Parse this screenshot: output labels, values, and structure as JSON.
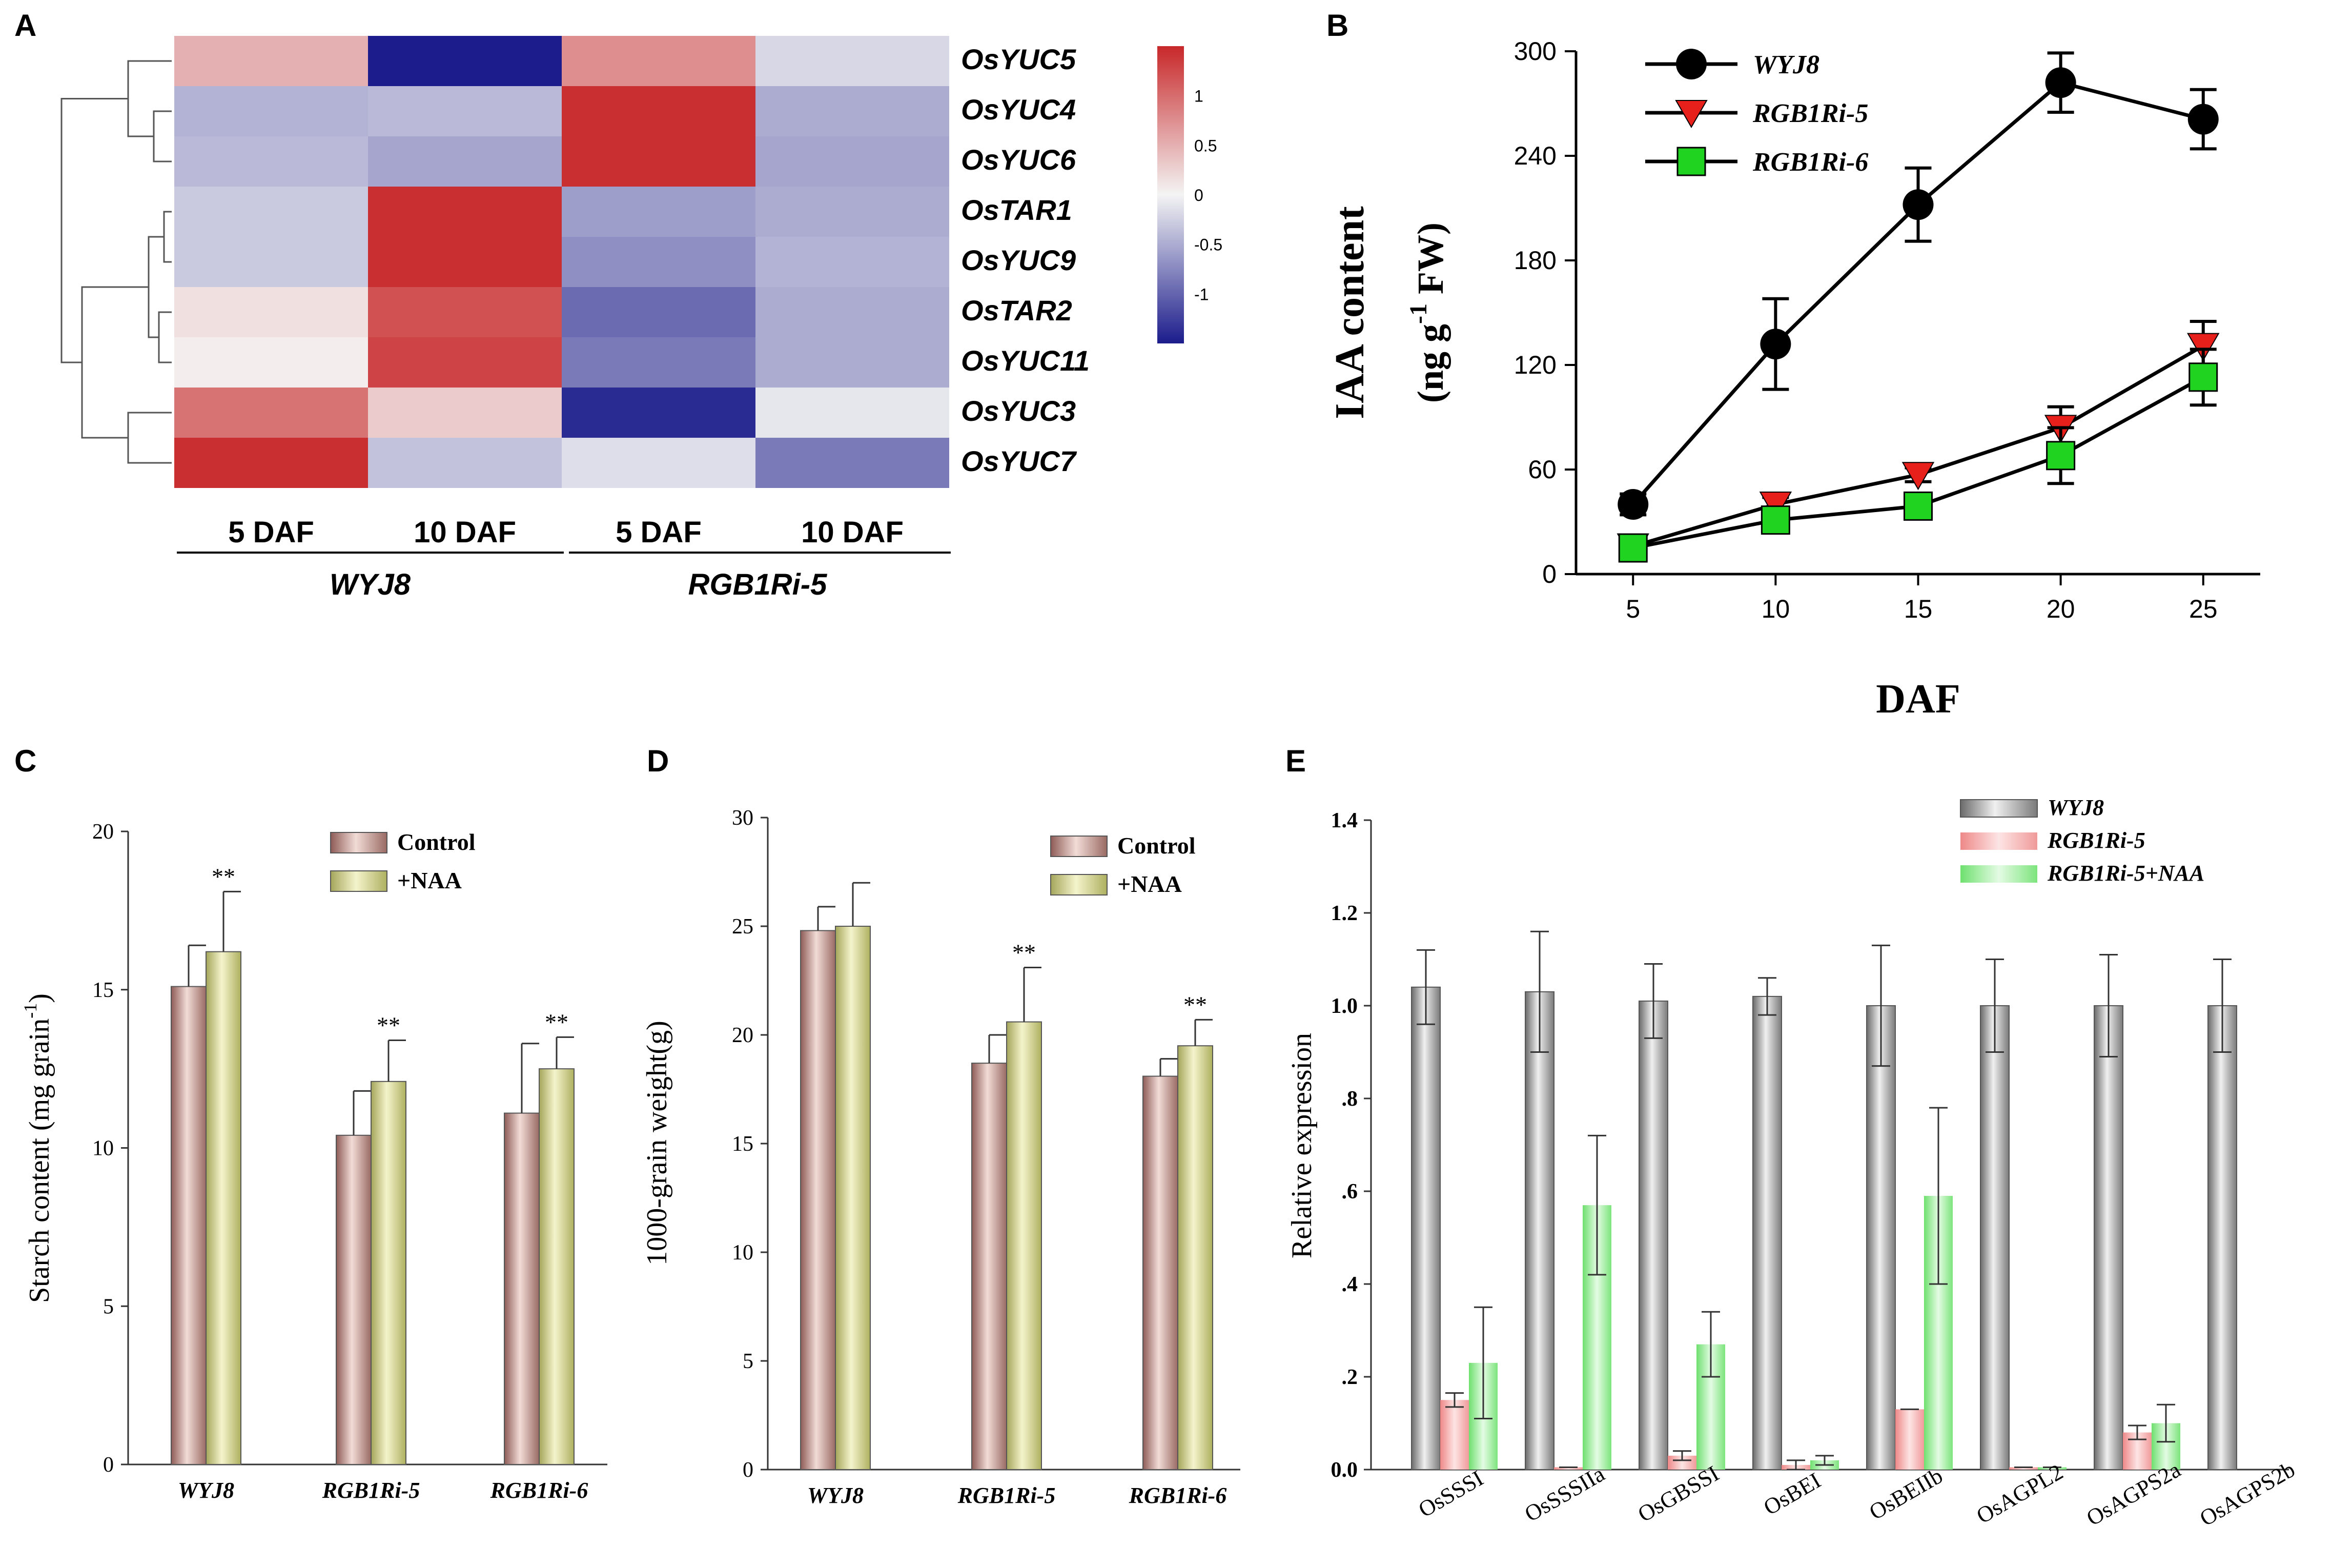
{
  "panel_labels": {
    "A": "A",
    "B": "B",
    "C": "C",
    "D": "D",
    "E": "E"
  },
  "chart_data": [
    {
      "panel": "A",
      "type": "heatmap",
      "columns": [
        "5 DAF",
        "10 DAF",
        "5 DAF",
        "10 DAF"
      ],
      "column_groups": [
        "WYJ8",
        "RGB1Ri-5"
      ],
      "rows": [
        "OsYUC5",
        "OsYUC4",
        "OsYUC6",
        "OsTAR1",
        "OsYUC9",
        "OsTAR2",
        "OsYUC11",
        "OsYUC3",
        "OsYUC7"
      ],
      "values": [
        [
          0.5,
          -1.5,
          0.75,
          -0.2
        ],
        [
          -0.45,
          -0.4,
          1.45,
          -0.5
        ],
        [
          -0.4,
          -0.55,
          1.45,
          -0.55
        ],
        [
          -0.3,
          1.45,
          -0.6,
          -0.5
        ],
        [
          -0.3,
          1.45,
          -0.7,
          -0.45
        ],
        [
          0.15,
          1.2,
          -0.95,
          -0.5
        ],
        [
          0.05,
          1.3,
          -0.85,
          -0.5
        ],
        [
          0.95,
          0.3,
          -1.4,
          -0.1
        ],
        [
          1.45,
          -0.35,
          -0.15,
          -0.85
        ]
      ],
      "colorbar": {
        "min": -1.5,
        "max": 1.5,
        "ticks": [
          "1",
          "0.5",
          "0",
          "-0.5",
          "-1"
        ],
        "tick_values": [
          1,
          0.5,
          0,
          -0.5,
          -1
        ],
        "low": "#1c1c8c",
        "mid": "#f4f4f4",
        "high": "#c8282a"
      }
    },
    {
      "panel": "B",
      "type": "line",
      "title": "",
      "xlabel": "DAF",
      "ylabel_line1": "IAA content",
      "ylabel_line2": "(ng g",
      "ylabel_sup": "-1",
      "ylabel_line2_end": " FW)",
      "x": [
        5,
        10,
        15,
        20,
        25
      ],
      "xlim": [
        3,
        27
      ],
      "ylim": [
        0,
        300
      ],
      "yticks": [
        0,
        60,
        120,
        180,
        240,
        300
      ],
      "series": [
        {
          "name": "WYJ8",
          "values": [
            40,
            132,
            212,
            282,
            261
          ],
          "errors": [
            6,
            26,
            21,
            17,
            17
          ],
          "marker": "circle",
          "color": "#000000"
        },
        {
          "name": "RGB1Ri-5",
          "values": [
            16,
            40,
            57,
            84,
            131
          ],
          "errors": [
            4,
            4,
            4,
            12,
            14
          ],
          "marker": "triangle-down",
          "color": "#e8201c"
        },
        {
          "name": "RGB1Ri-6",
          "values": [
            15,
            31,
            39,
            68,
            113
          ],
          "errors": [
            4,
            4,
            6,
            16,
            16
          ],
          "marker": "square",
          "color": "#21d321"
        }
      ]
    },
    {
      "panel": "C",
      "type": "bar",
      "ylabel": "Starch content (mg grain",
      "ylabel_sup": "-1",
      "ylabel_end": ")",
      "categories": [
        "WYJ8",
        "RGB1Ri-5",
        "RGB1Ri-6"
      ],
      "ylim": [
        0,
        20
      ],
      "yticks": [
        0,
        5,
        10,
        15,
        20
      ],
      "series": [
        {
          "name": "Control",
          "values": [
            15.1,
            10.4,
            11.1
          ],
          "errors": [
            1.3,
            1.4,
            2.2
          ]
        },
        {
          "name": "+NAA",
          "values": [
            16.2,
            12.1,
            12.5
          ],
          "errors": [
            1.9,
            1.3,
            1.0
          ]
        }
      ],
      "annotations": [
        "**",
        "**",
        "**"
      ]
    },
    {
      "panel": "D",
      "type": "bar",
      "ylabel": "1000-grain weight(g)",
      "categories": [
        "WYJ8",
        "RGB1Ri-5",
        "RGB1Ri-6"
      ],
      "ylim": [
        0,
        30
      ],
      "yticks": [
        0,
        5,
        10,
        15,
        20,
        25,
        30
      ],
      "series": [
        {
          "name": "Control",
          "values": [
            24.8,
            18.7,
            18.1
          ],
          "errors": [
            1.1,
            1.3,
            0.8
          ]
        },
        {
          "name": "+NAA",
          "values": [
            25.0,
            20.6,
            19.5
          ],
          "errors": [
            2.0,
            2.5,
            1.2
          ]
        }
      ],
      "annotations": [
        "",
        "**",
        "**"
      ]
    },
    {
      "panel": "E",
      "type": "bar",
      "ylabel": "Relative expression",
      "categories": [
        "OsSSSI",
        "OsSSSIIa",
        "OsGBSSI",
        "OsBEI",
        "OsBEIIb",
        "OsAGPL2",
        "OsAGPS2a",
        "OsAGPS2b"
      ],
      "ylim": [
        0,
        1.4
      ],
      "yticks": [
        0,
        0.2,
        0.4,
        0.6,
        0.8,
        1.0,
        1.2,
        1.4
      ],
      "ytick_labels": [
        "0.0",
        ".2",
        ".4",
        ".6",
        ".8",
        "1.0",
        "1.2",
        "1.4"
      ],
      "series": [
        {
          "name": "WYJ8",
          "values": [
            1.04,
            1.03,
            1.01,
            1.02,
            1.0,
            1.0,
            1.0,
            1.0
          ],
          "errors": [
            0.08,
            0.13,
            0.08,
            0.04,
            0.13,
            0.1,
            0.11,
            0.1
          ]
        },
        {
          "name": "RGB1Ri-5",
          "values": [
            0.15,
            0.005,
            0.03,
            0.01,
            0.13,
            0.005,
            0.08,
            0.0
          ],
          "errors": [
            0.015,
            0.0,
            0.01,
            0.01,
            0.0,
            0.0,
            0.015,
            0.0
          ]
        },
        {
          "name": "RGB1Ri-5+NAA",
          "values": [
            0.23,
            0.57,
            0.27,
            0.02,
            0.59,
            0.005,
            0.1,
            0.0
          ],
          "errors": [
            0.12,
            0.15,
            0.07,
            0.01,
            0.19,
            0.0,
            0.04,
            0.0
          ]
        }
      ]
    }
  ]
}
